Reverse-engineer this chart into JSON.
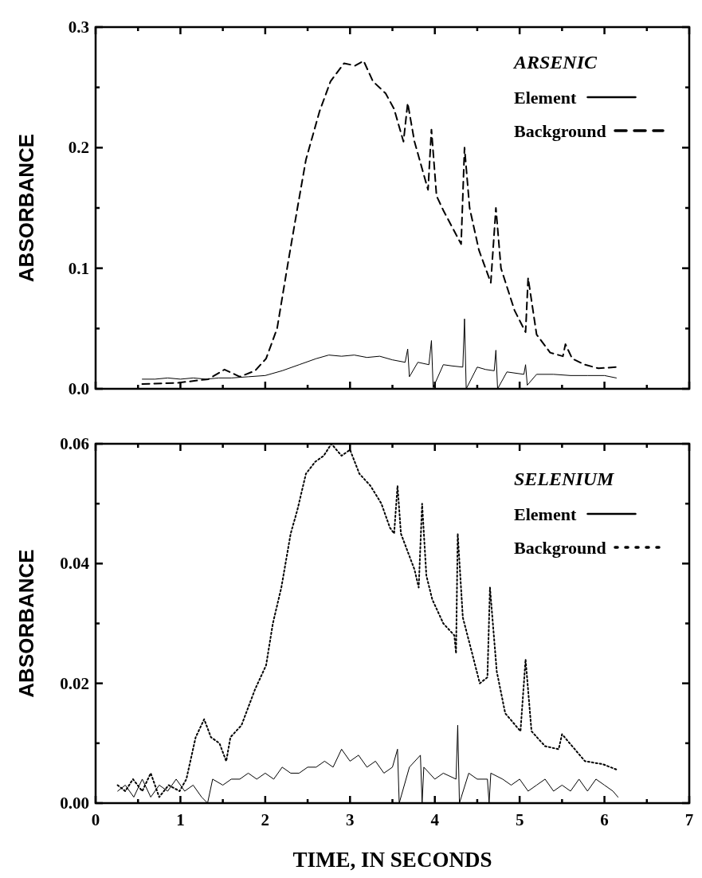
{
  "chart_data": [
    {
      "type": "line",
      "ylabel": "ABSORBANCE",
      "legend_title": "ARSENIC",
      "legend": "top right",
      "tick_labels": "y",
      "xlim": [
        0,
        7
      ],
      "ylim": [
        0,
        0.3
      ],
      "xticks": [
        0,
        {
          "value": 0.5,
          "label": null
        },
        1,
        {
          "value": 1.5,
          "label": null
        },
        2,
        {
          "value": 2.5,
          "label": null
        },
        3,
        {
          "value": 3.5,
          "label": null
        },
        4,
        {
          "value": 4.5,
          "label": null
        },
        5,
        {
          "value": 5.5,
          "label": null
        },
        6,
        {
          "value": 6.5,
          "label": null
        },
        7
      ],
      "yticks": [
        {
          "value": 0,
          "label": "0.0"
        },
        {
          "value": 0.05,
          "label": null
        },
        0.1,
        {
          "value": 0.15,
          "label": null
        },
        0.2,
        {
          "value": 0.25,
          "label": null
        },
        0.3
      ],
      "series": [
        {
          "name": "Element",
          "color": "#000000",
          "line_style": "solid",
          "x": [
            0.55,
            0.7,
            0.85,
            1.0,
            1.15,
            1.3,
            1.45,
            1.6,
            1.8,
            2.0,
            2.2,
            2.4,
            2.6,
            2.75,
            2.9,
            3.05,
            3.2,
            3.35,
            3.5,
            3.65,
            3.68,
            3.7,
            3.8,
            3.93,
            3.96,
            3.98,
            4.1,
            4.2,
            4.33,
            4.35,
            4.37,
            4.5,
            4.6,
            4.7,
            4.72,
            4.74,
            4.85,
            5.05,
            5.07,
            5.09,
            5.2,
            5.4,
            5.6,
            5.8,
            6.0,
            6.14
          ],
          "values": [
            0.008,
            0.008,
            0.009,
            0.008,
            0.009,
            0.008,
            0.009,
            0.009,
            0.01,
            0.011,
            0.015,
            0.02,
            0.025,
            0.028,
            0.027,
            0.028,
            0.026,
            0.027,
            0.024,
            0.022,
            0.033,
            0.01,
            0.022,
            0.02,
            0.04,
            0.001,
            0.02,
            0.019,
            0.018,
            0.058,
            0.0,
            0.018,
            0.016,
            0.015,
            0.032,
            0.0,
            0.014,
            0.012,
            0.02,
            0.003,
            0.012,
            0.012,
            0.011,
            0.011,
            0.011,
            0.009
          ]
        },
        {
          "name": "Background",
          "color": "#000000",
          "line_style": "dashed",
          "x": [
            0.55,
            0.97,
            1.33,
            1.52,
            1.7,
            1.88,
            2.01,
            2.14,
            2.27,
            2.38,
            2.48,
            2.64,
            2.77,
            2.93,
            3.06,
            3.16,
            3.27,
            3.42,
            3.52,
            3.63,
            3.68,
            3.76,
            3.92,
            3.96,
            4.02,
            4.1,
            4.31,
            4.35,
            4.41,
            4.52,
            4.66,
            4.72,
            4.78,
            4.94,
            5.07,
            5.1,
            5.2,
            5.36,
            5.51,
            5.54,
            5.62,
            5.77,
            5.93,
            6.14
          ],
          "values": [
            0.004,
            0.005,
            0.008,
            0.016,
            0.01,
            0.015,
            0.025,
            0.05,
            0.105,
            0.15,
            0.19,
            0.23,
            0.255,
            0.27,
            0.268,
            0.272,
            0.255,
            0.245,
            0.232,
            0.205,
            0.237,
            0.205,
            0.165,
            0.215,
            0.16,
            0.148,
            0.12,
            0.2,
            0.15,
            0.115,
            0.088,
            0.15,
            0.1,
            0.065,
            0.047,
            0.092,
            0.045,
            0.03,
            0.027,
            0.037,
            0.025,
            0.02,
            0.017,
            0.018
          ]
        }
      ]
    },
    {
      "type": "line",
      "ylabel": "ABSORBANCE",
      "xlabel": "TIME, IN SECONDS",
      "legend_title": "SELENIUM",
      "legend": "top right",
      "xlim": [
        0,
        7
      ],
      "ylim": [
        0,
        0.06
      ],
      "xticks": [
        0,
        {
          "value": 0.5,
          "label": null
        },
        1,
        {
          "value": 1.5,
          "label": null
        },
        2,
        {
          "value": 2.5,
          "label": null
        },
        3,
        {
          "value": 3.5,
          "label": null
        },
        4,
        {
          "value": 4.5,
          "label": null
        },
        5,
        {
          "value": 5.5,
          "label": null
        },
        6,
        {
          "value": 6.5,
          "label": null
        },
        7
      ],
      "yticks": [
        {
          "value": 0,
          "label": "0.00"
        },
        {
          "value": 0.01,
          "label": null
        },
        0.02,
        {
          "value": 0.03,
          "label": null
        },
        0.04,
        {
          "value": 0.05,
          "label": null
        },
        0.06
      ],
      "series": [
        {
          "name": "Element",
          "color": "#000000",
          "line_style": "solid",
          "x": [
            0.26,
            0.35,
            0.45,
            0.55,
            0.65,
            0.75,
            0.85,
            0.95,
            1.05,
            1.15,
            1.25,
            1.32,
            1.38,
            1.5,
            1.6,
            1.7,
            1.8,
            1.9,
            2.0,
            2.1,
            2.2,
            2.3,
            2.4,
            2.5,
            2.6,
            2.7,
            2.8,
            2.9,
            3.0,
            3.1,
            3.2,
            3.3,
            3.4,
            3.5,
            3.56,
            3.58,
            3.7,
            3.83,
            3.85,
            3.87,
            4.0,
            4.1,
            4.25,
            4.27,
            4.29,
            4.4,
            4.5,
            4.62,
            4.64,
            4.66,
            4.8,
            4.9,
            5.0,
            5.1,
            5.2,
            5.3,
            5.4,
            5.5,
            5.6,
            5.7,
            5.8,
            5.9,
            6.0,
            6.1,
            6.16
          ],
          "values": [
            0.002,
            0.003,
            0.001,
            0.004,
            0.001,
            0.003,
            0.002,
            0.004,
            0.002,
            0.003,
            0.001,
            0.0,
            0.004,
            0.003,
            0.004,
            0.004,
            0.005,
            0.004,
            0.005,
            0.004,
            0.006,
            0.005,
            0.005,
            0.006,
            0.006,
            0.007,
            0.006,
            0.009,
            0.007,
            0.008,
            0.006,
            0.007,
            0.005,
            0.006,
            0.009,
            0.0,
            0.006,
            0.008,
            0.0,
            0.006,
            0.004,
            0.005,
            0.004,
            0.013,
            0.0,
            0.005,
            0.004,
            0.004,
            0.0,
            0.005,
            0.004,
            0.003,
            0.004,
            0.002,
            0.003,
            0.004,
            0.002,
            0.003,
            0.002,
            0.004,
            0.002,
            0.004,
            0.003,
            0.002,
            0.001
          ]
        },
        {
          "name": "Background",
          "color": "#000000",
          "line_style": "dotted",
          "x": [
            0.26,
            0.35,
            0.44,
            0.55,
            0.65,
            0.75,
            0.86,
            0.99,
            1.07,
            1.18,
            1.28,
            1.36,
            1.46,
            1.54,
            1.59,
            1.72,
            1.88,
            2.01,
            2.09,
            2.19,
            2.3,
            2.38,
            2.48,
            2.59,
            2.69,
            2.78,
            2.9,
            3.0,
            3.11,
            3.24,
            3.37,
            3.47,
            3.52,
            3.56,
            3.6,
            3.76,
            3.81,
            3.85,
            3.9,
            3.97,
            4.1,
            4.23,
            4.25,
            4.27,
            4.33,
            4.44,
            4.53,
            4.62,
            4.65,
            4.73,
            4.83,
            5.01,
            5.07,
            5.14,
            5.3,
            5.46,
            5.5,
            5.62,
            5.77,
            5.98,
            6.16
          ],
          "values": [
            0.003,
            0.002,
            0.004,
            0.002,
            0.005,
            0.001,
            0.003,
            0.002,
            0.004,
            0.011,
            0.014,
            0.011,
            0.01,
            0.007,
            0.011,
            0.013,
            0.019,
            0.023,
            0.03,
            0.036,
            0.045,
            0.049,
            0.055,
            0.057,
            0.058,
            0.06,
            0.058,
            0.059,
            0.055,
            0.053,
            0.05,
            0.046,
            0.045,
            0.053,
            0.045,
            0.039,
            0.036,
            0.05,
            0.038,
            0.034,
            0.03,
            0.028,
            0.025,
            0.045,
            0.031,
            0.025,
            0.02,
            0.021,
            0.036,
            0.022,
            0.015,
            0.012,
            0.024,
            0.012,
            0.0095,
            0.009,
            0.0115,
            0.0095,
            0.007,
            0.0065,
            0.0055
          ]
        }
      ]
    }
  ]
}
